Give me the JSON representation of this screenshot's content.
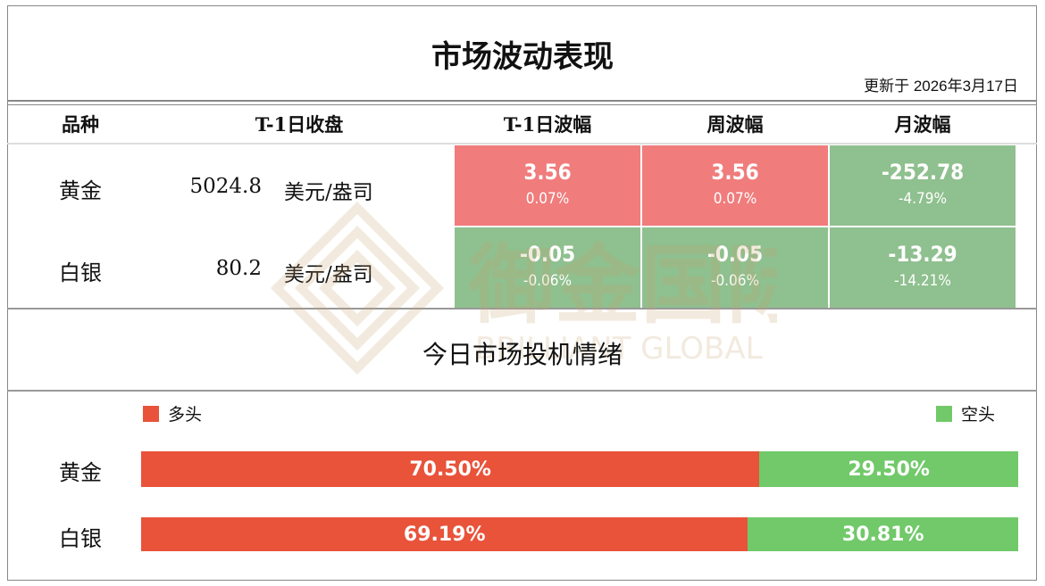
{
  "header": {
    "title": "市场波动表现",
    "updated": "更新于 2026年3月17日"
  },
  "table": {
    "columns": [
      "品种",
      "T-1日收盘",
      "T-1日波幅",
      "周波幅",
      "月波幅"
    ],
    "rows": [
      {
        "name": "黄金",
        "close": "5024.8",
        "unit": "美元/盎司",
        "cells": [
          {
            "value": "3.56",
            "pct": "0.07%",
            "trend": "up"
          },
          {
            "value": "3.56",
            "pct": "0.07%",
            "trend": "up"
          },
          {
            "value": "-252.78",
            "pct": "-4.79%",
            "trend": "down"
          }
        ]
      },
      {
        "name": "白银",
        "close": "80.2",
        "unit": "美元/盎司",
        "cells": [
          {
            "value": "-0.05",
            "pct": "-0.06%",
            "trend": "down"
          },
          {
            "value": "-0.05",
            "pct": "-0.06%",
            "trend": "down"
          },
          {
            "value": "-13.29",
            "pct": "-14.21%",
            "trend": "down"
          }
        ]
      }
    ]
  },
  "sentiment": {
    "title": "今日市场投机情绪",
    "legend": {
      "long": "多头",
      "short": "空头"
    },
    "rows": [
      {
        "name": "黄金",
        "long": 70.5,
        "short": 29.5,
        "long_label": "70.50%",
        "short_label": "29.50%"
      },
      {
        "name": "白银",
        "long": 69.19,
        "short": 30.81,
        "long_label": "69.19%",
        "short_label": "30.81%"
      }
    ]
  },
  "watermark": {
    "cn": "御金国际",
    "en": "BRILLIANT GLOBAL"
  },
  "colors": {
    "up_cell": "#f07c7c",
    "down_cell": "#8fc08f",
    "long_bar": "#e8533a",
    "short_bar": "#71c96a",
    "watermark": "#c9a56f"
  }
}
